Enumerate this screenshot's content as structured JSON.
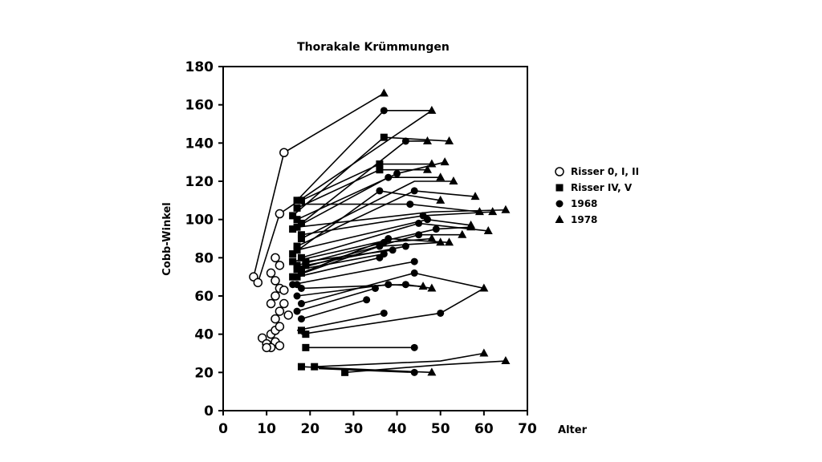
{
  "chart_data": {
    "type": "line",
    "title": "Thorakale Krümmungen",
    "xlabel": "Alter",
    "ylabel": "Cobb-Winkel",
    "xlim": [
      0,
      70
    ],
    "ylim": [
      0,
      180
    ],
    "xticks": [
      0,
      10,
      20,
      30,
      40,
      50,
      60,
      70
    ],
    "yticks": [
      0,
      20,
      40,
      60,
      80,
      100,
      120,
      140,
      160,
      180
    ],
    "grid": false,
    "legend_position": "right",
    "legend": [
      {
        "label": "Risser 0, I, II",
        "marker": "open-circle"
      },
      {
        "label": "Risser IV, V",
        "marker": "square"
      },
      {
        "label": "1968",
        "marker": "circle"
      },
      {
        "label": "1978",
        "marker": "triangle"
      }
    ],
    "series": [
      {
        "points": [
          [
            14,
            135
          ],
          [
            37,
            166
          ]
        ]
      },
      {
        "points": [
          [
            13,
            103
          ],
          [
            48,
            157
          ]
        ]
      },
      {
        "points": [
          [
            7,
            70
          ],
          [
            14,
            135
          ]
        ]
      },
      {
        "points": [
          [
            8,
            67
          ],
          [
            13,
            103
          ]
        ]
      },
      {
        "points": [
          [
            17,
            110
          ],
          [
            37,
            157
          ],
          [
            48,
            157
          ]
        ]
      },
      {
        "points": [
          [
            16,
            102
          ],
          [
            37,
            143
          ],
          [
            52,
            141
          ]
        ]
      },
      {
        "points": [
          [
            18,
            98
          ],
          [
            42,
            141
          ],
          [
            47,
            141
          ]
        ]
      },
      {
        "points": [
          [
            18,
            110
          ],
          [
            36,
            129
          ],
          [
            48,
            129
          ]
        ]
      },
      {
        "points": [
          [
            17,
            106
          ],
          [
            36,
            126
          ],
          [
            47,
            126
          ]
        ]
      },
      {
        "points": [
          [
            17,
            100
          ],
          [
            40,
            124
          ],
          [
            51,
            130
          ]
        ]
      },
      {
        "points": [
          [
            16,
            95
          ],
          [
            38,
            122
          ],
          [
            50,
            122
          ]
        ]
      },
      {
        "points": [
          [
            18,
            90
          ],
          [
            44,
            120
          ],
          [
            53,
            120
          ]
        ]
      },
      {
        "points": [
          [
            17,
            86
          ],
          [
            44,
            115
          ],
          [
            58,
            112
          ]
        ]
      },
      {
        "points": [
          [
            16,
            82
          ],
          [
            36,
            115
          ],
          [
            50,
            110
          ]
        ]
      },
      {
        "points": [
          [
            18,
            108
          ],
          [
            43,
            108
          ],
          [
            59,
            104
          ]
        ]
      },
      {
        "points": [
          [
            17,
            96
          ],
          [
            48,
            104
          ],
          [
            65,
            105
          ]
        ]
      },
      {
        "points": [
          [
            18,
            92
          ],
          [
            46,
            102
          ],
          [
            62,
            104
          ]
        ]
      },
      {
        "points": [
          [
            17,
            84
          ],
          [
            47,
            100
          ],
          [
            57,
            97
          ]
        ]
      },
      {
        "points": [
          [
            18,
            80
          ],
          [
            45,
            98
          ],
          [
            61,
            94
          ]
        ]
      },
      {
        "points": [
          [
            16,
            78
          ],
          [
            49,
            95
          ],
          [
            57,
            96
          ]
        ]
      },
      {
        "points": [
          [
            17,
            74
          ],
          [
            45,
            92
          ],
          [
            55,
            92
          ]
        ]
      },
      {
        "points": [
          [
            18,
            72
          ],
          [
            38,
            90
          ],
          [
            52,
            88
          ]
        ]
      },
      {
        "points": [
          [
            16,
            70
          ],
          [
            36,
            86
          ],
          [
            50,
            88
          ]
        ]
      },
      {
        "points": [
          [
            17,
            76
          ],
          [
            37,
            88
          ],
          [
            48,
            90
          ]
        ]
      },
      {
        "points": [
          [
            19,
            78
          ],
          [
            39,
            84
          ]
        ]
      },
      {
        "points": [
          [
            18,
            74
          ],
          [
            37,
            82
          ]
        ]
      },
      {
        "points": [
          [
            17,
            70
          ],
          [
            36,
            80
          ]
        ]
      },
      {
        "points": [
          [
            19,
            76
          ],
          [
            42,
            86
          ]
        ]
      },
      {
        "points": [
          [
            16,
            66
          ],
          [
            44,
            78
          ]
        ]
      },
      {
        "points": [
          [
            18,
            64
          ],
          [
            42,
            66
          ],
          [
            48,
            64
          ]
        ]
      },
      {
        "points": [
          [
            17,
            60
          ],
          [
            38,
            66
          ],
          [
            46,
            65
          ]
        ]
      },
      {
        "points": [
          [
            18,
            56
          ],
          [
            44,
            72
          ],
          [
            60,
            64
          ]
        ]
      },
      {
        "points": [
          [
            17,
            52
          ],
          [
            35,
            64
          ]
        ]
      },
      {
        "points": [
          [
            18,
            48
          ],
          [
            33,
            58
          ]
        ]
      },
      {
        "points": [
          [
            17,
            42
          ],
          [
            37,
            51
          ]
        ]
      },
      {
        "points": [
          [
            18,
            40
          ],
          [
            50,
            51
          ],
          [
            60,
            64
          ]
        ]
      },
      {
        "points": [
          [
            19,
            33
          ],
          [
            44,
            33
          ]
        ]
      },
      {
        "points": [
          [
            18,
            23
          ],
          [
            38,
            21
          ],
          [
            48,
            20
          ]
        ]
      },
      {
        "points": [
          [
            21,
            23
          ],
          [
            50,
            26
          ],
          [
            60,
            30
          ]
        ]
      },
      {
        "points": [
          [
            28,
            20
          ],
          [
            50,
            24
          ],
          [
            65,
            26
          ]
        ]
      },
      {
        "points": [
          [
            22,
            22
          ],
          [
            44,
            20
          ]
        ]
      }
    ],
    "markers": {
      "open-circle": [
        [
          7,
          70
        ],
        [
          8,
          67
        ],
        [
          13,
          103
        ],
        [
          14,
          135
        ],
        [
          9,
          38
        ],
        [
          10,
          35
        ],
        [
          11,
          40
        ],
        [
          12,
          36
        ],
        [
          11,
          33
        ],
        [
          13,
          34
        ],
        [
          10,
          33
        ],
        [
          12,
          42
        ],
        [
          12,
          48
        ],
        [
          13,
          52
        ],
        [
          11,
          56
        ],
        [
          12,
          60
        ],
        [
          13,
          64
        ],
        [
          12,
          68
        ],
        [
          11,
          72
        ],
        [
          13,
          76
        ],
        [
          12,
          80
        ],
        [
          14,
          56
        ],
        [
          13,
          44
        ],
        [
          15,
          50
        ],
        [
          14,
          63
        ]
      ],
      "square": [
        [
          17,
          110
        ],
        [
          18,
          110
        ],
        [
          17,
          106
        ],
        [
          16,
          102
        ],
        [
          18,
          98
        ],
        [
          17,
          100
        ],
        [
          16,
          95
        ],
        [
          18,
          92
        ],
        [
          17,
          96
        ],
        [
          18,
          90
        ],
        [
          17,
          86
        ],
        [
          16,
          82
        ],
        [
          18,
          80
        ],
        [
          17,
          84
        ],
        [
          16,
          78
        ],
        [
          17,
          76
        ],
        [
          18,
          74
        ],
        [
          17,
          74
        ],
        [
          18,
          72
        ],
        [
          16,
          70
        ],
        [
          17,
          70
        ],
        [
          19,
          78
        ],
        [
          19,
          76
        ],
        [
          18,
          42
        ],
        [
          19,
          40
        ],
        [
          19,
          33
        ],
        [
          18,
          23
        ],
        [
          21,
          23
        ],
        [
          28,
          20
        ],
        [
          37,
          143
        ],
        [
          36,
          129
        ],
        [
          36,
          126
        ]
      ],
      "circle": [
        [
          37,
          157
        ],
        [
          42,
          141
        ],
        [
          40,
          124
        ],
        [
          38,
          122
        ],
        [
          44,
          115
        ],
        [
          36,
          115
        ],
        [
          43,
          108
        ],
        [
          46,
          102
        ],
        [
          47,
          100
        ],
        [
          45,
          98
        ],
        [
          49,
          95
        ],
        [
          45,
          92
        ],
        [
          38,
          90
        ],
        [
          36,
          86
        ],
        [
          37,
          88
        ],
        [
          39,
          84
        ],
        [
          37,
          82
        ],
        [
          36,
          80
        ],
        [
          42,
          86
        ],
        [
          44,
          78
        ],
        [
          42,
          66
        ],
        [
          38,
          66
        ],
        [
          44,
          72
        ],
        [
          35,
          64
        ],
        [
          33,
          58
        ],
        [
          37,
          51
        ],
        [
          50,
          51
        ],
        [
          44,
          33
        ],
        [
          44,
          20
        ],
        [
          17,
          66
        ],
        [
          18,
          64
        ],
        [
          17,
          60
        ],
        [
          18,
          56
        ],
        [
          17,
          52
        ],
        [
          18,
          48
        ],
        [
          16,
          66
        ]
      ],
      "triangle": [
        [
          37,
          166
        ],
        [
          48,
          157
        ],
        [
          52,
          141
        ],
        [
          47,
          141
        ],
        [
          48,
          129
        ],
        [
          47,
          126
        ],
        [
          51,
          130
        ],
        [
          50,
          122
        ],
        [
          53,
          120
        ],
        [
          58,
          112
        ],
        [
          50,
          110
        ],
        [
          59,
          104
        ],
        [
          65,
          105
        ],
        [
          62,
          104
        ],
        [
          57,
          97
        ],
        [
          61,
          94
        ],
        [
          57,
          96
        ],
        [
          55,
          92
        ],
        [
          52,
          88
        ],
        [
          50,
          88
        ],
        [
          48,
          90
        ],
        [
          48,
          64
        ],
        [
          46,
          65
        ],
        [
          60,
          64
        ],
        [
          48,
          20
        ],
        [
          60,
          30
        ],
        [
          65,
          26
        ]
      ]
    }
  }
}
